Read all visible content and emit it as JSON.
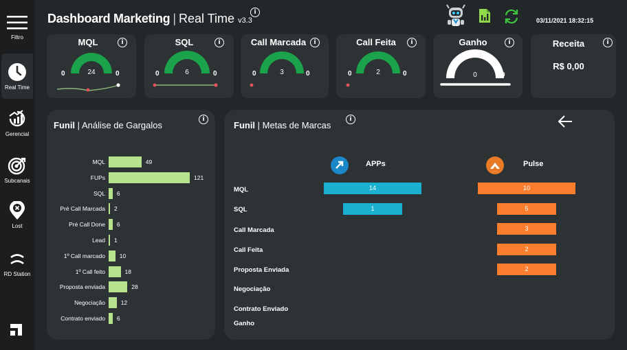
{
  "sidebar": {
    "items": [
      {
        "label": "Filtro",
        "icon": "menu-icon"
      },
      {
        "label": "Real Time",
        "icon": "clock-icon",
        "active": true
      },
      {
        "label": "Gerencial",
        "icon": "chart-icon"
      },
      {
        "label": "Subcanais",
        "icon": "target-icon"
      },
      {
        "label": "Lost",
        "icon": "lost-pin-icon"
      },
      {
        "label": "RD Station",
        "icon": "rd-station-icon"
      }
    ],
    "logo": "brand-logo-icon"
  },
  "header": {
    "title_bold": "Dashboard Marketing",
    "separator": "|",
    "title_regular": "Real Time",
    "version": "v3.3",
    "datetime": "03/11/2021 18:32:15",
    "icons": [
      "robot-icon",
      "excel-file-icon",
      "refresh-icon"
    ]
  },
  "kpis": [
    {
      "title": "MQL",
      "value": "24",
      "min": "0",
      "max": "0",
      "fill": 1.0,
      "gauge_color": "#1aa34a"
    },
    {
      "title": "SQL",
      "value": "6",
      "min": "0",
      "max": "0",
      "fill": 1.0,
      "gauge_color": "#1aa34a"
    },
    {
      "title": "Call Marcada",
      "value": "3",
      "min": "0",
      "max": "0",
      "fill": 1.0,
      "gauge_color": "#1aa34a"
    },
    {
      "title": "Call Feita",
      "value": "2",
      "min": "0",
      "max": "0",
      "fill": 1.0,
      "gauge_color": "#1aa34a"
    },
    {
      "title": "Ganho",
      "value": "0",
      "min": "0",
      "max": "0",
      "fill": 1.0,
      "gauge_color": "#ffffff"
    },
    {
      "title": "Receita",
      "value": "R$ 0,00"
    }
  ],
  "funil_gargalos": {
    "title_bold": "Funil",
    "title_rest": "| Análise de Gargalos",
    "bar_color": "#b7e38f",
    "chart_data": {
      "type": "bar",
      "categories": [
        "MQL",
        "FUPs",
        "SQL",
        "Pré Call Marcada",
        "Pré Call Done",
        "Lead",
        "1º Call marcado",
        "1º Call feito",
        "Proposta enviada",
        "Negociação",
        "Contrato enviado"
      ],
      "values": [
        49,
        121,
        6,
        2,
        6,
        1,
        10,
        18,
        28,
        12,
        6
      ]
    }
  },
  "funil_metas": {
    "title_bold": "Funil",
    "title_rest": "| Metas de Marcas",
    "back_icon": "arrow-left-icon",
    "brands": [
      {
        "name": "APPs",
        "icon": "apps-logo-icon",
        "color": "#1ab0cf"
      },
      {
        "name": "Pulse",
        "icon": "pulse-logo-icon",
        "color": "#fb7d2e"
      }
    ],
    "chart_data": {
      "type": "bar",
      "categories": [
        "MQL",
        "SQL",
        "Call Marcada",
        "Call Feita",
        "Proposta Enviada",
        "Negociação",
        "Contrato Enviado",
        "Ganho"
      ],
      "series": [
        {
          "name": "APPs",
          "values": [
            14,
            1,
            null,
            null,
            null,
            null,
            null,
            null
          ]
        },
        {
          "name": "Pulse",
          "values": [
            10,
            5,
            3,
            2,
            2,
            null,
            null,
            null
          ]
        }
      ]
    }
  }
}
